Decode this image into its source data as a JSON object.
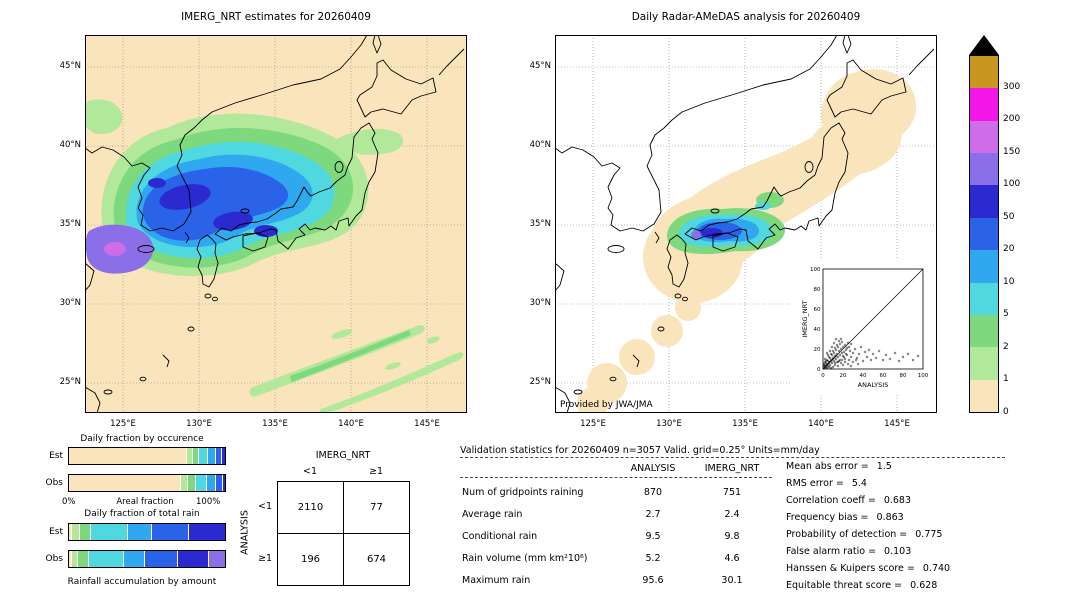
{
  "colorbar": {
    "tick_labels": [
      "300",
      "200",
      "150",
      "100",
      "50",
      "20",
      "10",
      "5",
      "2",
      "1",
      "0"
    ],
    "cell_colors_top_to_bottom": [
      "#c8961e",
      "#f316e8",
      "#cf6ce8",
      "#8a6fe8",
      "#2a2ad0",
      "#2a62e8",
      "#2fa8f0",
      "#4fd8e0",
      "#7ed87e",
      "#b2e89a",
      "#f9e4bb"
    ],
    "overflow_color": "#000000"
  },
  "chart_data": [
    {
      "id": "imerg_map",
      "type": "heatmap",
      "title": "IMERG_NRT estimates for 20260409",
      "x_ticks": [
        "125°E",
        "130°E",
        "135°E",
        "140°E",
        "145°E"
      ],
      "y_ticks": [
        "45°N",
        "40°N",
        "35°N",
        "30°N",
        "25°N"
      ]
    },
    {
      "id": "radar_amedas_map",
      "type": "heatmap",
      "title": "Daily Radar-AMeDAS analysis for 20260409",
      "credit": "Provided by JWA/JMA",
      "x_ticks": [
        "125°E",
        "130°E",
        "135°E",
        "140°E",
        "145°E"
      ],
      "y_ticks": [
        "45°N",
        "40°N",
        "35°N",
        "30°N",
        "25°N"
      ]
    },
    {
      "id": "inset_scatter",
      "type": "scatter",
      "xlabel": "ANALYSIS",
      "ylabel": "IMERG_NRT",
      "xlim": [
        0,
        100
      ],
      "ylim": [
        0,
        100
      ],
      "ticks": [
        0,
        20,
        40,
        60,
        80,
        100
      ],
      "points": [
        [
          2,
          1
        ],
        [
          3,
          2
        ],
        [
          1,
          3
        ],
        [
          4,
          5
        ],
        [
          5,
          3
        ],
        [
          6,
          7
        ],
        [
          7,
          4
        ],
        [
          8,
          9
        ],
        [
          9,
          6
        ],
        [
          10,
          11
        ],
        [
          11,
          8
        ],
        [
          12,
          13
        ],
        [
          13,
          10
        ],
        [
          14,
          15
        ],
        [
          15,
          12
        ],
        [
          16,
          18
        ],
        [
          17,
          14
        ],
        [
          18,
          20
        ],
        [
          19,
          16
        ],
        [
          20,
          22
        ],
        [
          21,
          17
        ],
        [
          22,
          24
        ],
        [
          23,
          19
        ],
        [
          24,
          21
        ],
        [
          25,
          26
        ],
        [
          26,
          22
        ],
        [
          27,
          18
        ],
        [
          28,
          25
        ],
        [
          5,
          8
        ],
        [
          7,
          11
        ],
        [
          9,
          14
        ],
        [
          11,
          16
        ],
        [
          13,
          19
        ],
        [
          15,
          22
        ],
        [
          17,
          25
        ],
        [
          19,
          27
        ],
        [
          3,
          6
        ],
        [
          4,
          9
        ],
        [
          6,
          12
        ],
        [
          8,
          15
        ],
        [
          10,
          18
        ],
        [
          12,
          21
        ],
        [
          2,
          4
        ],
        [
          3,
          8
        ],
        [
          14,
          24
        ],
        [
          16,
          28
        ],
        [
          18,
          30
        ],
        [
          20,
          13
        ],
        [
          22,
          10
        ],
        [
          24,
          14
        ],
        [
          26,
          9
        ],
        [
          28,
          12
        ],
        [
          30,
          16
        ],
        [
          32,
          20
        ],
        [
          34,
          11
        ],
        [
          36,
          15
        ],
        [
          38,
          22
        ],
        [
          40,
          8
        ],
        [
          42,
          17
        ],
        [
          44,
          12
        ],
        [
          46,
          19
        ],
        [
          48,
          9
        ],
        [
          50,
          15
        ],
        [
          53,
          11
        ],
        [
          56,
          18
        ],
        [
          60,
          9
        ],
        [
          63,
          14
        ],
        [
          67,
          10
        ],
        [
          72,
          16
        ],
        [
          76,
          8
        ],
        [
          80,
          12
        ],
        [
          85,
          15
        ],
        [
          90,
          9
        ],
        [
          95,
          13
        ],
        [
          25,
          5
        ],
        [
          30,
          7
        ],
        [
          35,
          5
        ],
        [
          15,
          3
        ],
        [
          20,
          4
        ],
        [
          10,
          2
        ],
        [
          8,
          1
        ],
        [
          12,
          4
        ],
        [
          18,
          6
        ],
        [
          22,
          7
        ],
        [
          28,
          3
        ],
        [
          33,
          9
        ],
        [
          6,
          2
        ],
        [
          4,
          1
        ],
        [
          2,
          7
        ],
        [
          1,
          5
        ],
        [
          5,
          14
        ],
        [
          7,
          18
        ],
        [
          9,
          22
        ],
        [
          11,
          26
        ],
        [
          13,
          30
        ],
        [
          2,
          10
        ],
        [
          4,
          16
        ],
        [
          1,
          1
        ],
        [
          3,
          3
        ],
        [
          5,
          5
        ],
        [
          7,
          7
        ],
        [
          9,
          9
        ],
        [
          11,
          11
        ],
        [
          13,
          13
        ],
        [
          2,
          2
        ],
        [
          4,
          4
        ],
        [
          6,
          6
        ],
        [
          8,
          8
        ],
        [
          10,
          10
        ],
        [
          16,
          8
        ],
        [
          14,
          7
        ],
        [
          12,
          6
        ],
        [
          19,
          9
        ],
        [
          21,
          12
        ],
        [
          23,
          15
        ],
        [
          17,
          9
        ],
        [
          15,
          7
        ]
      ]
    },
    {
      "id": "occurrence_fraction",
      "type": "bar",
      "title": "Daily fraction by occurence",
      "x_left": "0%",
      "x_label": "Areal fraction",
      "x_right": "100%",
      "rows": [
        {
          "label": "Est",
          "segments": [
            [
              "#f9e4bb",
              75.4
            ],
            [
              "#b2e89a",
              4.0
            ],
            [
              "#7ed87e",
              4.0
            ],
            [
              "#4fd8e0",
              6.0
            ],
            [
              "#2fa8f0",
              5.0
            ],
            [
              "#2a62e8",
              4.0
            ],
            [
              "#2a2ad0",
              1.6
            ]
          ]
        },
        {
          "label": "Obs",
          "segments": [
            [
              "#f9e4bb",
              71.5
            ],
            [
              "#b2e89a",
              5.0
            ],
            [
              "#7ed87e",
              5.0
            ],
            [
              "#4fd8e0",
              7.0
            ],
            [
              "#2fa8f0",
              6.0
            ],
            [
              "#2a62e8",
              4.5
            ],
            [
              "#2a2ad0",
              1.0
            ]
          ]
        }
      ]
    },
    {
      "id": "total_rain_fraction",
      "type": "bar",
      "title": "Daily fraction of total rain",
      "caption": "Rainfall accumulation by amount",
      "rows": [
        {
          "label": "Est",
          "segments": [
            [
              "#f9e4bb",
              2
            ],
            [
              "#b2e89a",
              5
            ],
            [
              "#7ed87e",
              7
            ],
            [
              "#4fd8e0",
              24
            ],
            [
              "#2fa8f0",
              15
            ],
            [
              "#2a62e8",
              24
            ],
            [
              "#2a2ad0",
              23
            ]
          ]
        },
        {
          "label": "Obs",
          "segments": [
            [
              "#f9e4bb",
              2
            ],
            [
              "#b2e89a",
              4
            ],
            [
              "#7ed87e",
              7
            ],
            [
              "#4fd8e0",
              22
            ],
            [
              "#2fa8f0",
              14
            ],
            [
              "#2a62e8",
              21
            ],
            [
              "#2a2ad0",
              20
            ],
            [
              "#8a6fe8",
              10
            ]
          ]
        }
      ]
    },
    {
      "id": "contingency_table",
      "type": "table",
      "col_group": "IMERG_NRT",
      "row_group": "ANALYSIS",
      "col_labels": [
        "<1",
        "≥1"
      ],
      "row_labels": [
        "<1",
        "≥1"
      ],
      "values": [
        [
          2110,
          77
        ],
        [
          196,
          674
        ]
      ]
    },
    {
      "id": "validation_table",
      "type": "table",
      "title": "Validation statistics for 20260409  n=3057 Valid. grid=0.25° Units=mm/day",
      "columns": [
        "ANALYSIS",
        "IMERG_NRT"
      ],
      "rows": [
        {
          "label": "Num of gridpoints raining",
          "analysis": "870",
          "imerg": "751"
        },
        {
          "label": "Average rain",
          "analysis": "2.7",
          "imerg": "2.4"
        },
        {
          "label": "Conditional rain",
          "analysis": "9.5",
          "imerg": "9.8"
        },
        {
          "label": "Rain volume (mm km²10⁶)",
          "analysis": "5.2",
          "imerg": "4.6"
        },
        {
          "label": "Maximum rain",
          "analysis": "95.6",
          "imerg": "30.1"
        }
      ]
    },
    {
      "id": "scores",
      "type": "table",
      "rows": [
        {
          "label": "Mean abs error =",
          "value": "1.5"
        },
        {
          "label": "RMS error =",
          "value": "5.4"
        },
        {
          "label": "Correlation coeff =",
          "value": "0.683"
        },
        {
          "label": "Frequency bias =",
          "value": "0.863"
        },
        {
          "label": "Probability of detection =",
          "value": "0.775"
        },
        {
          "label": "False alarm ratio =",
          "value": "0.103"
        },
        {
          "label": "Hanssen & Kuipers score =",
          "value": "0.740"
        },
        {
          "label": "Equitable threat score =",
          "value": "0.628"
        }
      ]
    }
  ]
}
